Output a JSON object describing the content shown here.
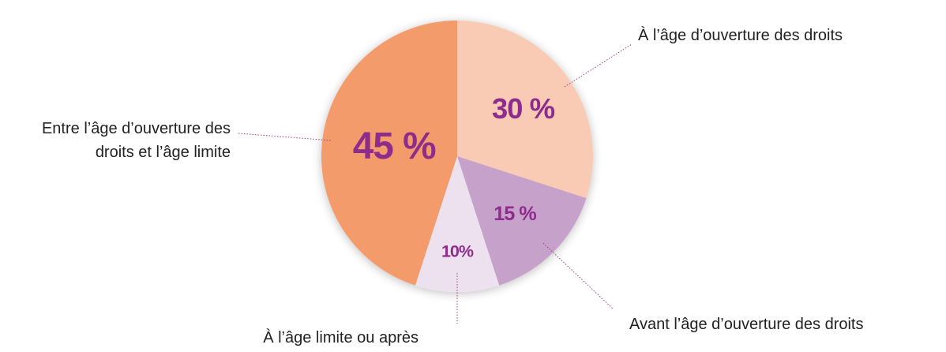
{
  "chart_data": {
    "type": "pie",
    "categories": [
      "À l’âge d’ouverture des droits",
      "Avant l’âge d’ouverture des droits",
      "À l’âge limite ou après",
      "Entre l’âge d’ouverture des droits et l’âge limite"
    ],
    "values": [
      30,
      15,
      10,
      45
    ],
    "value_labels": [
      "30 %",
      "15 %",
      "10%",
      "45 %"
    ],
    "colors": [
      "#f9cbb4",
      "#c6a1c9",
      "#ede1ef",
      "#f39b6b"
    ]
  }
}
